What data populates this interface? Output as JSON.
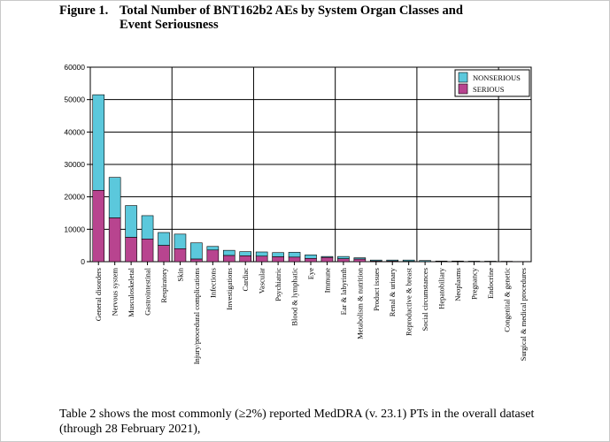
{
  "figure": {
    "label": "Figure 1.",
    "title": "Total Number of BNT162b2 AEs by System Organ Classes and Event Seriousness"
  },
  "body_text": "Table 2 shows the most commonly (≥2%) reported MedDRA (v. 23.1) PTs in the overall dataset (through 28 February 2021),",
  "colors": {
    "nonserious": "#5bc8dc",
    "serious": "#b8448f",
    "grid": "#000000"
  },
  "chart_data": {
    "type": "bar",
    "stacked": true,
    "title": "Total Number of BNT162b2 AEs by System Organ Classes and Event Seriousness",
    "xlabel": "",
    "ylabel": "",
    "ylim": [
      0,
      60000
    ],
    "yticks": [
      0,
      10000,
      20000,
      30000,
      40000,
      50000,
      60000
    ],
    "grid": true,
    "legend_position": "top-right",
    "categories": [
      "General disorders",
      "Nervous system",
      "Musculoskeletal",
      "Gastrointestinal",
      "Respiratory",
      "Skin",
      "Injury/procedural complications",
      "Infections",
      "Investigations",
      "Cardiac",
      "Vascular",
      "Psychiatric",
      "Blood & lymphatic",
      "Eye",
      "Immune",
      "Ear & labyrinth",
      "Metabolism & nutrition",
      "Product issues",
      "Renal & urinary",
      "Reproductive & breast",
      "Social circumstances",
      "Hepatobiliary",
      "Neoplasms",
      "Pregnancy",
      "Endocrine",
      "Congenital & genetic",
      "Surgical & medical procedures"
    ],
    "series": [
      {
        "name": "SERIOUS",
        "values": [
          22000,
          13500,
          7500,
          7000,
          5000,
          4000,
          800,
          3600,
          1900,
          1800,
          1700,
          1500,
          1400,
          1000,
          1300,
          900,
          800,
          200,
          200,
          100,
          50,
          100,
          100,
          50,
          50,
          20,
          10
        ]
      },
      {
        "name": "NONSERIOUS",
        "values": [
          29500,
          12500,
          9800,
          7200,
          4000,
          4500,
          5000,
          1100,
          1600,
          1300,
          1300,
          1300,
          1500,
          1100,
          300,
          700,
          400,
          300,
          300,
          400,
          300,
          100,
          100,
          100,
          100,
          100,
          50
        ]
      }
    ]
  }
}
